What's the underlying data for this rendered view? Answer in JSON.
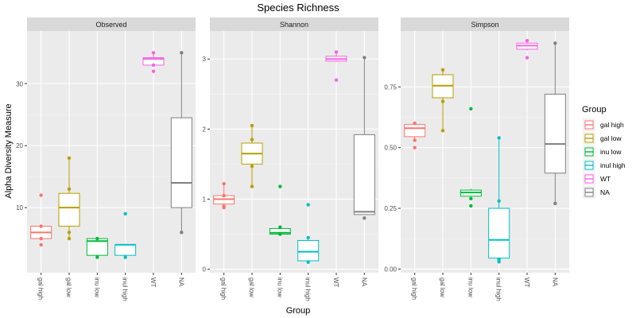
{
  "title": "Species Richness",
  "xlabel": "Group",
  "ylabel": "Alpha Diversity Measure",
  "colors": {
    "gal high": "#F8766D",
    "gal low": "#B79F00",
    "inu low": "#00BA38",
    "inul high": "#00BFC4",
    "WT": "#F564E3",
    "NA": "#808080"
  },
  "legend": {
    "title": "Group",
    "entries": [
      "gal high",
      "gal low",
      "inu low",
      "inul high",
      "WT",
      "NA"
    ]
  },
  "chart_data": {
    "type": "boxplot",
    "categories": [
      "gal high",
      "gal low",
      "inu low",
      "inul high",
      "WT",
      "NA"
    ],
    "legend_position": "right",
    "grid": true,
    "panels": [
      {
        "name": "Observed",
        "ylim": [
          -0.5,
          38.5
        ],
        "yticks": [
          10,
          20,
          30
        ],
        "tick_labels": [
          "10",
          "20",
          "30"
        ],
        "boxes": [
          {
            "group": "gal high",
            "min": 5,
            "q1": 5,
            "median": 6,
            "q3": 7,
            "max": 7,
            "points": [
              4,
              5,
              7,
              12
            ]
          },
          {
            "group": "gal low",
            "min": 5,
            "q1": 7,
            "median": 10,
            "q3": 12.3,
            "max": 18,
            "points": [
              5,
              6,
              13,
              18
            ]
          },
          {
            "group": "inu low",
            "min": 2.3,
            "q1": 2.3,
            "median": 4.6,
            "q3": 5,
            "max": 5,
            "points": [
              2,
              5
            ]
          },
          {
            "group": "inul high",
            "min": 2.3,
            "q1": 2.3,
            "median": 4,
            "q3": 4,
            "max": 4,
            "points": [
              2,
              9
            ]
          },
          {
            "group": "WT",
            "min": 33,
            "q1": 33,
            "median": 34,
            "q3": 34.2,
            "max": 35,
            "points": [
              32,
              33,
              35
            ]
          },
          {
            "group": "NA",
            "min": 6,
            "q1": 10,
            "median": 14,
            "q3": 24.5,
            "max": 35,
            "points": [
              6,
              35
            ]
          }
        ]
      },
      {
        "name": "Shannon",
        "ylim": [
          -0.05,
          3.4
        ],
        "yticks": [
          0,
          1,
          2,
          3
        ],
        "tick_labels": [
          "0",
          "1",
          "2",
          "3"
        ],
        "boxes": [
          {
            "group": "gal high",
            "min": 0.9,
            "q1": 0.93,
            "median": 1,
            "q3": 1.05,
            "max": 1.22,
            "points": [
              0.88,
              0.9,
              1.05,
              1.22
            ]
          },
          {
            "group": "gal low",
            "min": 1.18,
            "q1": 1.5,
            "median": 1.65,
            "q3": 1.8,
            "max": 2.05,
            "points": [
              1.18,
              1.47,
              1.85,
              2.05
            ]
          },
          {
            "group": "inu low",
            "min": 0.5,
            "q1": 0.5,
            "median": 0.52,
            "q3": 0.58,
            "max": 0.6,
            "points": [
              1.18,
              0.6,
              0.5
            ]
          },
          {
            "group": "inul high",
            "min": 0.1,
            "q1": 0.12,
            "median": 0.25,
            "q3": 0.41,
            "max": 0.45,
            "points": [
              0.1,
              0.45,
              0.92
            ]
          },
          {
            "group": "WT",
            "min": 2.96,
            "q1": 2.97,
            "median": 3.0,
            "q3": 3.04,
            "max": 3.1,
            "points": [
              2.7,
              3.1
            ]
          },
          {
            "group": "NA",
            "min": 0.78,
            "q1": 0.78,
            "median": 0.82,
            "q3": 1.92,
            "max": 3.02,
            "points": [
              0.73,
              3.02
            ]
          }
        ]
      },
      {
        "name": "Simpson",
        "ylim": [
          -0.015,
          0.98
        ],
        "yticks": [
          0,
          0.25,
          0.5,
          0.75
        ],
        "tick_labels": [
          "0.00",
          "0.25",
          "0.50",
          "0.75"
        ],
        "boxes": [
          {
            "group": "gal high",
            "min": 0.53,
            "q1": 0.545,
            "median": 0.58,
            "q3": 0.595,
            "max": 0.6,
            "points": [
              0.5,
              0.53,
              0.6
            ]
          },
          {
            "group": "gal low",
            "min": 0.57,
            "q1": 0.705,
            "median": 0.755,
            "q3": 0.8,
            "max": 0.82,
            "points": [
              0.57,
              0.69,
              0.82
            ]
          },
          {
            "group": "inu low",
            "min": 0.3,
            "q1": 0.3,
            "median": 0.315,
            "q3": 0.325,
            "max": 0.33,
            "points": [
              0.66,
              0.26,
              0.29
            ]
          },
          {
            "group": "inul high",
            "min": 0.04,
            "q1": 0.045,
            "median": 0.12,
            "q3": 0.25,
            "max": 0.54,
            "points": [
              0.03,
              0.04,
              0.28,
              0.54
            ]
          },
          {
            "group": "WT",
            "min": 0.9,
            "q1": 0.905,
            "median": 0.92,
            "q3": 0.93,
            "max": 0.94,
            "points": [
              0.87,
              0.94
            ]
          },
          {
            "group": "NA",
            "min": 0.27,
            "q1": 0.395,
            "median": 0.515,
            "q3": 0.72,
            "max": 0.93,
            "points": [
              0.27,
              0.93
            ]
          }
        ]
      }
    ]
  }
}
